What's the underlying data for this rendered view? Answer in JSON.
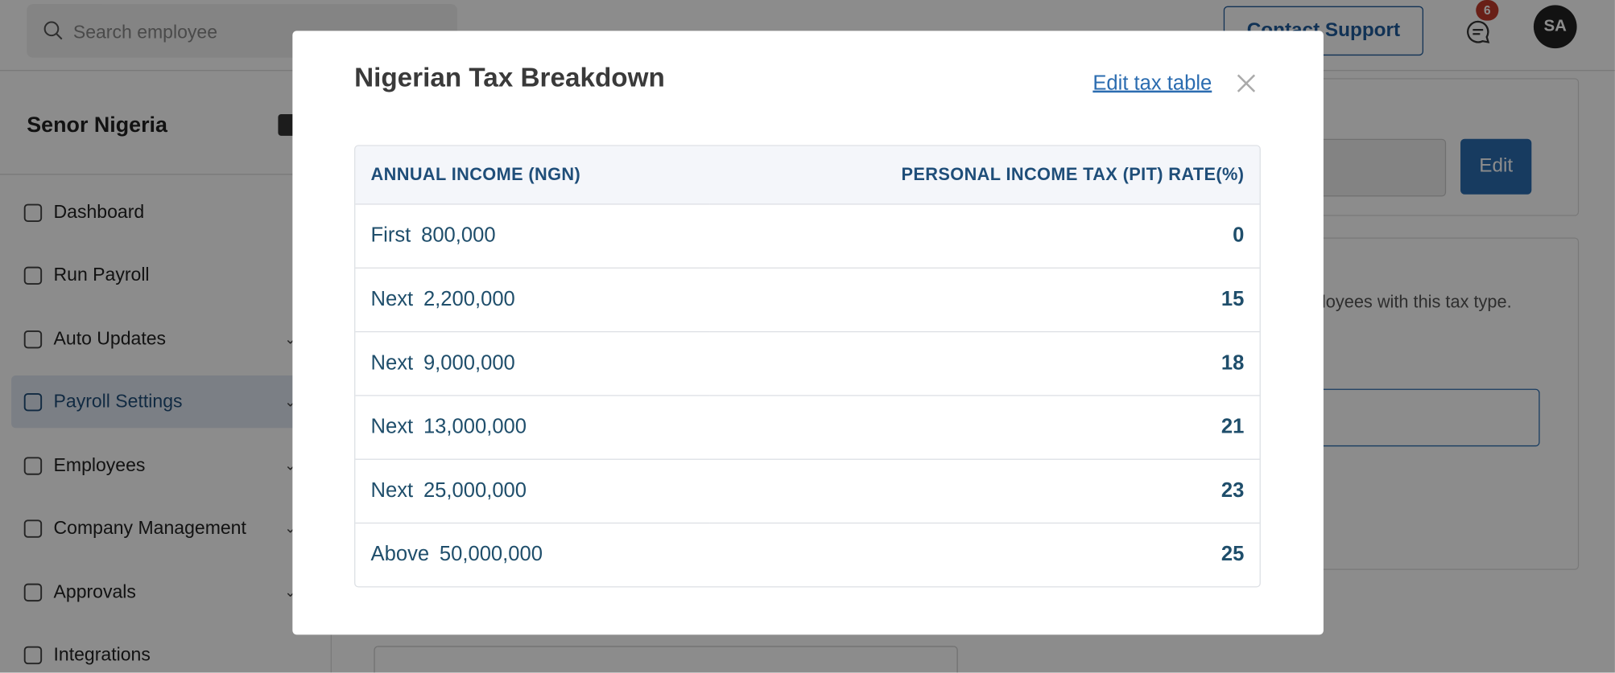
{
  "topbar": {
    "search_placeholder": "Search employee",
    "support_button": "Contact Support",
    "notification_count": "6",
    "avatar": "SA"
  },
  "sidebar": {
    "company": "Senor Nigeria",
    "items": [
      "Dashboard",
      "Run Payroll",
      "Auto Updates",
      "Payroll Settings",
      "Employees",
      "Company Management",
      "Approvals",
      "Integrations"
    ]
  },
  "background": {
    "edit_button": "Edit",
    "text": "ployees with this tax type."
  },
  "modal": {
    "title": "Nigerian Tax Breakdown",
    "edit_link": "Edit tax table",
    "table": {
      "headers": [
        "ANNUAL INCOME (NGN)",
        "PERSONAL INCOME TAX (PIT) RATE(%)"
      ],
      "rows": [
        [
          "First",
          "800,000",
          "0"
        ],
        [
          "Next",
          "2,200,000",
          "15"
        ],
        [
          "Next",
          "9,000,000",
          "18"
        ],
        [
          "Next",
          "13,000,000",
          "21"
        ],
        [
          "Next",
          "25,000,000",
          "23"
        ],
        [
          "Above",
          "50,000,000",
          "25"
        ]
      ]
    }
  }
}
